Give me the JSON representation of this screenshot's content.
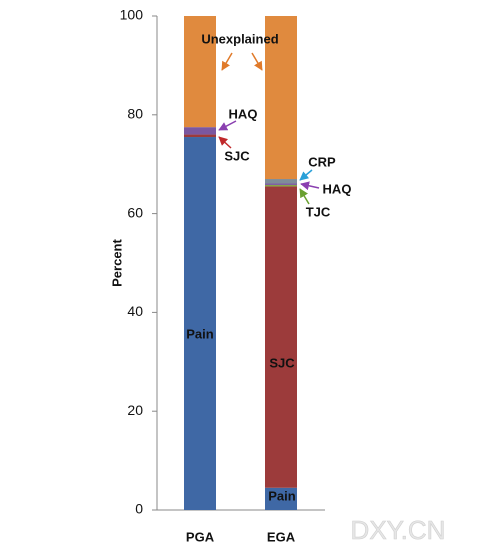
{
  "chart_data": {
    "type": "stacked_bar",
    "y_label": "Percent",
    "categories": [
      "PGA",
      "EGA"
    ],
    "series": [
      {
        "name": "Pain",
        "color": "#3f68a5",
        "values": [
          75.5,
          4.5
        ]
      },
      {
        "name": "SJC",
        "color": "#9c3b3b",
        "values": [
          0.5,
          61
        ]
      },
      {
        "name": "TJC",
        "color": "#86a648",
        "values": [
          null,
          0.3
        ]
      },
      {
        "name": "HAQ",
        "color": "#7a57a0",
        "values": [
          1.5,
          0.3
        ]
      },
      {
        "name": "CRP",
        "color": "#7f8c99",
        "values": [
          null,
          0.9
        ]
      },
      {
        "name": "Unexplained",
        "color": "#e08a3e",
        "values": [
          22.5,
          33
        ]
      }
    ],
    "ylim": [
      0,
      100
    ],
    "yticks": [
      0,
      20,
      40,
      60,
      80,
      100
    ],
    "grid": false,
    "watermark": "DXY.CN"
  }
}
